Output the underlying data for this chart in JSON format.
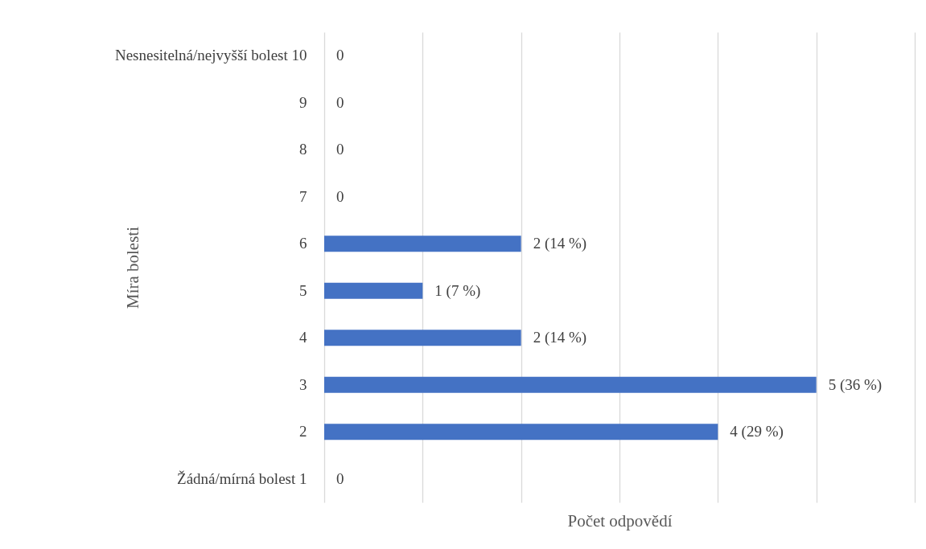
{
  "chart_data": {
    "type": "bar",
    "orientation": "horizontal",
    "xlabel": "Počet odpovědí",
    "ylabel": "Míra bolesti",
    "categories": [
      "Nesnesitelná/nejvyšší bolest 10",
      "9",
      "8",
      "7",
      "6",
      "5",
      "4",
      "3",
      "2",
      "Žádná/mírná bolest 1"
    ],
    "values": [
      0,
      0,
      0,
      0,
      2,
      1,
      2,
      5,
      4,
      0
    ],
    "value_labels": [
      "0",
      "0",
      "0",
      "0",
      "2 (14 %)",
      "1 (7 %)",
      "2 (14 %)",
      "5 (36 %)",
      "4 (29 %)",
      "0"
    ],
    "color": "#4472c4",
    "xlim": [
      0,
      6
    ],
    "xticks": [
      {
        "value": 0,
        "label": null
      },
      {
        "value": 1,
        "label": null
      },
      {
        "value": 2,
        "label": null
      },
      {
        "value": 3,
        "label": null
      },
      {
        "value": 4,
        "label": null
      },
      {
        "value": 5,
        "label": null
      },
      {
        "value": 6,
        "label": null
      }
    ],
    "tick_labels": "y",
    "grid": "x"
  }
}
